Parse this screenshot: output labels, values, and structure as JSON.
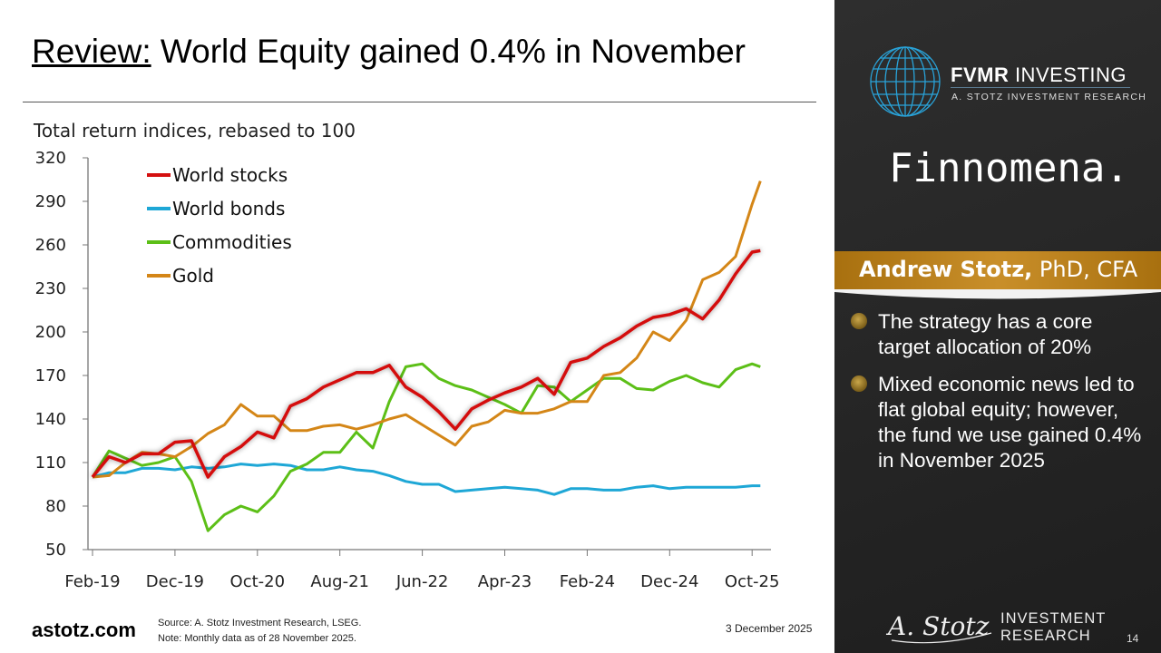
{
  "header": {
    "title_prefix": "Review:",
    "title_rest": " World Equity gained 0.4% in November"
  },
  "footer": {
    "site": "astotz.com",
    "source": "Source: A. Stotz Investment Research, LSEG.",
    "note": "Note: Monthly data as of 28 November 2025.",
    "date": "3 December 2025",
    "page": "14"
  },
  "panel": {
    "brand": "FVMR INVESTING",
    "brand_bold": "FVMR",
    "brand_rest": " INVESTING",
    "brand_sub": "A. STOTZ INVESTMENT RESEARCH",
    "partner": "Finnomena.",
    "author_name": "Andrew Stotz,",
    "author_creds": " PhD, CFA",
    "bullets": [
      "The strategy has a core target allocation of 20%",
      "Mixed economic news led to flat global equity; however, the fund we use gained 0.4% in November 2025"
    ],
    "signature": "A. Stotz",
    "ir_line1": "INVESTMENT",
    "ir_line2": "RESEARCH",
    "globe_color": "#29a3d9",
    "band_color": "#b8801c"
  },
  "chart_data": {
    "type": "line",
    "title": "",
    "subtitle": "Total return indices, rebased to 100",
    "xlabel": "",
    "ylabel": "",
    "ylim": [
      50,
      320
    ],
    "yticks": [
      50,
      80,
      110,
      140,
      170,
      200,
      230,
      260,
      290,
      320
    ],
    "xtick_labels": [
      "Feb-19",
      "Dec-19",
      "Oct-20",
      "Aug-21",
      "Jun-22",
      "Apr-23",
      "Feb-24",
      "Dec-24",
      "Oct-25"
    ],
    "grid": false,
    "legend": "top-left",
    "x": [
      "Feb-19",
      "Apr-19",
      "Jun-19",
      "Aug-19",
      "Oct-19",
      "Dec-19",
      "Feb-20",
      "Apr-20",
      "Jun-20",
      "Aug-20",
      "Oct-20",
      "Dec-20",
      "Feb-21",
      "Apr-21",
      "Jun-21",
      "Aug-21",
      "Oct-21",
      "Dec-21",
      "Feb-22",
      "Apr-22",
      "Jun-22",
      "Aug-22",
      "Oct-22",
      "Dec-22",
      "Feb-23",
      "Apr-23",
      "Jun-23",
      "Aug-23",
      "Oct-23",
      "Dec-23",
      "Feb-24",
      "Apr-24",
      "Jun-24",
      "Aug-24",
      "Oct-24",
      "Dec-24",
      "Feb-25",
      "Apr-25",
      "Jun-25",
      "Aug-25",
      "Oct-25",
      "Nov-25"
    ],
    "series": [
      {
        "name": "World stocks",
        "color": "#d40f0f",
        "values": [
          100,
          114,
          110,
          116,
          116,
          124,
          125,
          100,
          114,
          121,
          131,
          127,
          149,
          154,
          162,
          167,
          172,
          172,
          177,
          162,
          155,
          145,
          133,
          147,
          153,
          158,
          162,
          168,
          157,
          179,
          182,
          190,
          196,
          204,
          210,
          212,
          216,
          209,
          222,
          240,
          255,
          256
        ]
      },
      {
        "name": "World bonds",
        "color": "#1ea7d6",
        "values": [
          100,
          103,
          103,
          106,
          106,
          105,
          107,
          106,
          107,
          109,
          108,
          109,
          108,
          105,
          105,
          107,
          105,
          104,
          101,
          97,
          95,
          95,
          90,
          91,
          92,
          93,
          92,
          91,
          88,
          92,
          92,
          91,
          91,
          93,
          94,
          92,
          93,
          93,
          93,
          93,
          94,
          94
        ]
      },
      {
        "name": "Commodities",
        "color": "#5cbf17",
        "values": [
          100,
          118,
          113,
          108,
          110,
          114,
          97,
          63,
          74,
          80,
          76,
          87,
          104,
          109,
          117,
          117,
          131,
          120,
          152,
          176,
          178,
          168,
          163,
          160,
          155,
          150,
          144,
          163,
          162,
          152,
          160,
          168,
          168,
          161,
          160,
          166,
          170,
          165,
          162,
          174,
          178,
          176
        ]
      },
      {
        "name": "Gold",
        "color": "#d48617",
        "values": [
          100,
          101,
          110,
          117,
          116,
          114,
          121,
          130,
          136,
          150,
          142,
          142,
          132,
          132,
          135,
          136,
          133,
          136,
          140,
          143,
          136,
          129,
          122,
          135,
          138,
          146,
          144,
          144,
          147,
          152,
          152,
          170,
          172,
          182,
          200,
          194,
          208,
          236,
          241,
          252,
          288,
          304
        ]
      }
    ]
  }
}
